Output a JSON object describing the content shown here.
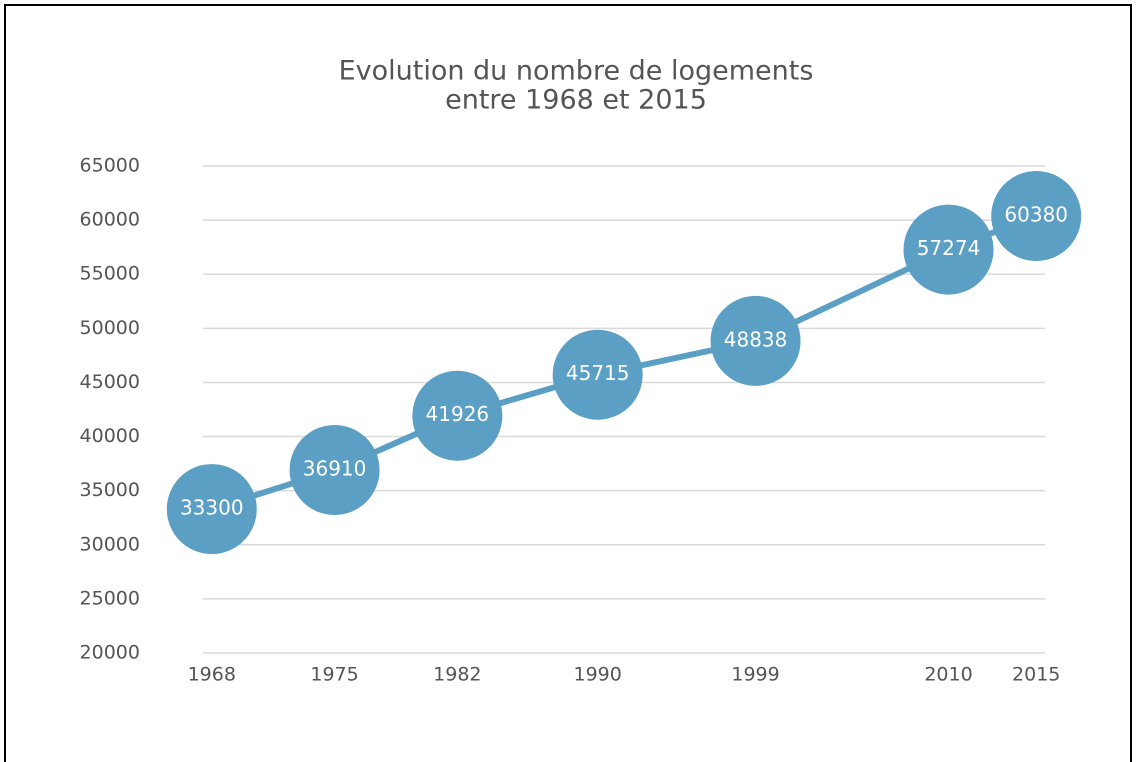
{
  "chart_data": {
    "type": "line",
    "title": "Evolution du nombre de logements",
    "subtitle": "entre 1968 et 2015",
    "x": [
      1968,
      1975,
      1982,
      1990,
      1999,
      2010,
      2015
    ],
    "values": [
      33300,
      36910,
      41926,
      45715,
      48838,
      57274,
      60380
    ],
    "color": "#5b9fc5",
    "xlim": [
      1967.5,
      2015.5
    ],
    "xticks": [
      1968,
      1975,
      1982,
      1990,
      1999,
      2010,
      2015
    ],
    "ylim": [
      20000,
      65000
    ],
    "yticks": [
      20000,
      25000,
      30000,
      35000,
      40000,
      45000,
      50000,
      55000,
      60000,
      65000
    ],
    "grid": true
  }
}
